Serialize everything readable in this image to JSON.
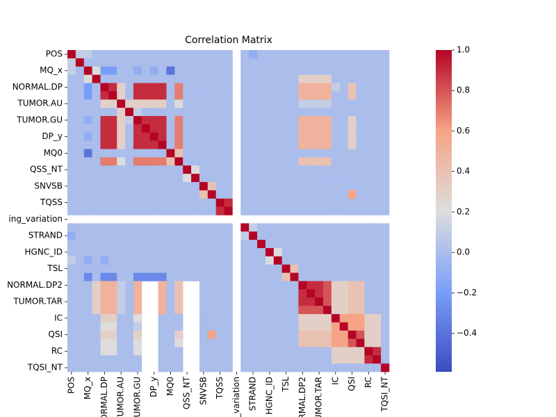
{
  "chart_data": {
    "type": "heatmap",
    "title": "Correlation Matrix",
    "categories": [
      "POS",
      null,
      "MQ_x",
      null,
      "NORMAL.DP",
      null,
      "TUMOR.AU",
      null,
      "TUMOR.GU",
      null,
      "DP_y",
      null,
      "MQ0",
      null,
      "QSS_NT",
      null,
      "SNVSB",
      null,
      "TQSS",
      null,
      "ing_variation",
      null,
      "STRAND",
      null,
      "HGNC_ID",
      null,
      "TSL",
      null,
      "NORMAL.DP2",
      null,
      "TUMOR.TAR",
      null,
      "IC",
      null,
      "QSI",
      null,
      "RC",
      null,
      "TQSI_NT"
    ],
    "colormap": "coolwarm",
    "zlim": [
      -0.59,
      1
    ],
    "zticks": [
      {
        "value": -0.4,
        "label": "−0.4"
      },
      {
        "value": -0.2,
        "label": "−0.2"
      },
      {
        "value": 0,
        "label": "0.0"
      },
      0.2,
      0.4,
      0.6,
      0.8,
      {
        "value": 1,
        "label": "1.0"
      }
    ],
    "matrix": [
      [
        1,
        0.1,
        0.1,
        0,
        0,
        0,
        0,
        0,
        0,
        0,
        0,
        0,
        0,
        0,
        0,
        0,
        0,
        0,
        0,
        0,
        null,
        0,
        -0.1,
        0,
        0,
        0,
        0,
        0,
        0,
        0,
        0,
        0,
        0,
        0,
        0,
        0,
        0,
        0,
        0
      ],
      [
        0.1,
        1,
        0,
        0,
        0,
        0,
        0,
        0,
        0,
        0,
        0,
        0,
        0,
        0,
        0,
        0,
        0,
        0,
        0,
        0,
        null,
        0,
        0,
        0,
        0,
        0,
        0,
        0,
        0,
        0,
        0,
        0,
        0,
        0,
        0,
        0,
        0,
        0,
        0
      ],
      [
        0.1,
        0,
        1,
        0.2,
        -0.2,
        -0.2,
        0,
        0,
        -0.1,
        0,
        -0.1,
        0,
        -0.4,
        0,
        0,
        0,
        0,
        0,
        0,
        0,
        null,
        0,
        0,
        0,
        0,
        0,
        0,
        0,
        0,
        0,
        0,
        0,
        0,
        0,
        0,
        0,
        0,
        0,
        0
      ],
      [
        0,
        0,
        0.2,
        1,
        0,
        0,
        0,
        0,
        0,
        0,
        0,
        0,
        0,
        0,
        0,
        0,
        0,
        0,
        0,
        0,
        null,
        0,
        0,
        0,
        0,
        0,
        0,
        0,
        0.3,
        0.3,
        0.3,
        0.3,
        0,
        0,
        0,
        0,
        0,
        0,
        0
      ],
      [
        0,
        0,
        -0.2,
        0,
        1,
        0.9,
        0.3,
        0,
        0.9,
        0.9,
        0.9,
        0.9,
        0,
        0.7,
        0,
        0,
        0,
        0,
        0,
        0,
        null,
        0,
        0,
        0,
        0,
        0,
        0,
        0,
        0.5,
        0.5,
        0.5,
        0.5,
        0.1,
        0,
        0.4,
        0,
        0,
        0,
        0
      ],
      [
        0,
        0,
        -0.2,
        0,
        0.9,
        1,
        0.3,
        0,
        0.9,
        0.9,
        0.9,
        0.9,
        0,
        0.7,
        0,
        0,
        0,
        0,
        0,
        0,
        null,
        0,
        0,
        0,
        0,
        0,
        0,
        0,
        0.5,
        0.5,
        0.5,
        0.5,
        0,
        0,
        0.4,
        0,
        0,
        0,
        0
      ],
      [
        0,
        0,
        0,
        0,
        0.3,
        0.3,
        1,
        0.3,
        0.3,
        0.3,
        0.3,
        0.3,
        0,
        0.2,
        0,
        0,
        0,
        0,
        0,
        0,
        null,
        0,
        0,
        0,
        0,
        0,
        0,
        0,
        0.1,
        0.1,
        0.1,
        0.1,
        0,
        0,
        0,
        0,
        0,
        0,
        0
      ],
      [
        0,
        0,
        0,
        0,
        0,
        0,
        0.3,
        1,
        0.1,
        0,
        0,
        0,
        0,
        0,
        0,
        0,
        0,
        0,
        0,
        0,
        null,
        0,
        0,
        0,
        0,
        0,
        0,
        0,
        0,
        0,
        0,
        0,
        0,
        0,
        0,
        0,
        0,
        0,
        0
      ],
      [
        0,
        0,
        -0.1,
        0,
        0.9,
        0.9,
        0.3,
        0.1,
        1,
        0.9,
        0.9,
        0.9,
        0,
        0.7,
        0,
        0,
        0,
        0,
        0,
        0,
        null,
        0,
        0,
        0,
        0,
        0,
        0,
        0,
        0.5,
        0.5,
        0.5,
        0.5,
        0,
        0,
        0.3,
        0,
        0,
        0,
        0
      ],
      [
        0,
        0,
        0,
        0,
        0.9,
        0.9,
        0.3,
        0,
        0.9,
        1,
        0.9,
        0.9,
        0,
        0.7,
        0,
        0,
        0,
        0,
        0,
        0,
        null,
        0,
        0,
        0,
        0,
        0,
        0,
        0,
        0.5,
        0.5,
        0.5,
        0.5,
        0,
        0,
        0.3,
        0,
        0,
        0,
        0
      ],
      [
        0,
        0,
        -0.1,
        0,
        0.9,
        0.9,
        0.3,
        0,
        0.9,
        0.9,
        1,
        0.9,
        0,
        0.7,
        0,
        0,
        0,
        0,
        0,
        0,
        null,
        0,
        0,
        0,
        0,
        0,
        0,
        0,
        0.5,
        0.5,
        0.5,
        0.5,
        0,
        0,
        0.3,
        0,
        0,
        0,
        0
      ],
      [
        0,
        0,
        0,
        0,
        0.9,
        0.9,
        0.3,
        0,
        0.9,
        0.9,
        0.9,
        1,
        0,
        0.7,
        0,
        0,
        0,
        0,
        0,
        0,
        null,
        0,
        0,
        0,
        0,
        0,
        0,
        0,
        0.5,
        0.5,
        0.5,
        0.5,
        0,
        0,
        0.3,
        0,
        0,
        0,
        0
      ],
      [
        0,
        0,
        -0.4,
        0,
        0,
        0,
        0,
        0,
        0,
        0,
        0,
        0,
        1,
        0.4,
        0,
        0,
        0,
        0,
        0,
        0,
        null,
        0,
        0,
        0,
        0,
        0,
        0,
        0,
        0,
        0,
        0,
        0,
        0,
        0,
        0,
        0,
        0,
        0,
        0
      ],
      [
        0,
        0,
        0,
        0,
        0.7,
        0.7,
        0.2,
        0,
        0.7,
        0.7,
        0.7,
        0.7,
        0.4,
        1,
        0,
        0,
        0,
        0,
        0,
        0,
        null,
        0,
        0,
        0,
        0,
        0,
        0,
        0,
        0.4,
        0.4,
        0.4,
        0.4,
        0,
        0,
        0,
        0,
        0,
        0,
        0
      ],
      [
        0,
        0,
        0,
        0,
        0,
        0,
        0,
        0,
        0,
        0,
        0,
        0,
        0,
        0,
        1,
        0.2,
        0,
        0,
        0,
        0,
        null,
        0,
        0,
        0,
        0,
        0,
        0,
        0,
        0,
        0,
        0,
        0,
        0,
        0,
        0,
        0,
        0,
        0,
        0
      ],
      [
        0,
        0,
        0,
        0,
        0,
        0,
        0,
        0,
        0,
        0,
        0,
        0,
        0,
        0,
        0.2,
        1,
        0,
        0,
        0,
        0,
        null,
        0,
        0,
        0,
        0,
        0,
        0,
        0,
        0,
        0,
        0,
        0,
        0,
        0,
        0,
        0,
        0,
        0,
        0
      ],
      [
        0,
        0,
        0,
        0,
        0,
        0,
        0,
        0,
        0,
        0,
        0,
        0,
        0,
        0,
        0,
        0,
        1,
        0.4,
        0,
        0,
        null,
        0,
        0,
        0,
        0,
        0,
        0,
        0,
        0,
        0,
        0,
        0,
        0,
        0,
        0,
        0,
        0,
        0,
        0
      ],
      [
        0,
        0,
        0,
        0,
        0,
        0,
        0,
        0,
        0,
        0,
        0,
        0,
        0,
        0,
        0,
        0,
        0.4,
        1,
        0,
        0,
        null,
        0,
        0,
        0,
        0,
        0,
        0,
        0,
        0,
        0,
        0,
        0,
        0,
        0,
        0.6,
        0,
        0,
        0,
        0
      ],
      [
        0,
        0,
        0,
        0,
        0,
        0,
        0,
        0,
        0,
        0,
        0,
        0,
        0,
        0,
        0,
        0,
        0,
        0,
        1,
        0.9,
        null,
        0,
        0,
        0,
        0,
        0,
        0,
        0,
        0,
        0,
        0,
        0,
        0,
        0,
        0,
        0,
        0,
        0,
        0
      ],
      [
        0,
        0,
        0,
        0,
        0,
        0,
        0,
        0,
        0,
        0,
        0,
        0,
        0,
        0,
        0,
        0,
        0,
        0,
        0.9,
        1,
        null,
        0,
        0,
        0,
        0,
        0,
        0,
        0,
        0,
        0,
        0,
        0,
        0,
        0,
        0,
        0,
        0,
        0,
        0
      ],
      [
        null,
        null,
        null,
        null,
        null,
        null,
        null,
        null,
        null,
        null,
        null,
        null,
        null,
        null,
        null,
        null,
        null,
        null,
        null,
        null,
        null,
        null,
        null,
        null,
        null,
        null,
        null,
        null,
        null,
        null,
        null,
        null,
        null,
        null,
        null,
        null,
        null,
        null,
        null
      ],
      [
        0,
        0,
        0,
        0,
        0,
        0,
        0,
        0,
        0,
        0,
        0,
        0,
        0,
        0,
        0,
        0,
        0,
        0,
        0,
        0,
        null,
        1,
        0.1,
        0,
        0,
        0,
        0,
        0,
        0,
        0,
        0,
        0,
        0,
        0,
        0,
        0,
        0,
        0,
        0
      ],
      [
        -0.1,
        0,
        0,
        0,
        0,
        0,
        0,
        0,
        0,
        0,
        0,
        0,
        0,
        0,
        0,
        0,
        0,
        0,
        0,
        0,
        null,
        0.1,
        1,
        0,
        0,
        0,
        0,
        0,
        0,
        0,
        0,
        0,
        0,
        0,
        0,
        0,
        0,
        0,
        0
      ],
      [
        0,
        0,
        0,
        0,
        0,
        0,
        0,
        0,
        0,
        0,
        0,
        0,
        0,
        0,
        0,
        0,
        0,
        0,
        0,
        0,
        null,
        0,
        0,
        1,
        0,
        0,
        0,
        0,
        0,
        0,
        0,
        0,
        0,
        0,
        0,
        0,
        0,
        0,
        0
      ],
      [
        0,
        0,
        0,
        0,
        0,
        0,
        0,
        0,
        0,
        0,
        0,
        0,
        0,
        0,
        0,
        0,
        0,
        0,
        0,
        0,
        null,
        0,
        0,
        0,
        1,
        0.2,
        0,
        0,
        0,
        0,
        0,
        0,
        0,
        0,
        0,
        0,
        0,
        0,
        0
      ],
      [
        0.1,
        0,
        -0.1,
        0,
        -0.1,
        0,
        0,
        0,
        0,
        0,
        0,
        0,
        0,
        0,
        0,
        0,
        0,
        0,
        0,
        0,
        null,
        0,
        0,
        0,
        0.2,
        1,
        0,
        0,
        0,
        0,
        0,
        0,
        0,
        0,
        0,
        0,
        0,
        0,
        0
      ],
      [
        0,
        0,
        0,
        0,
        0,
        0,
        0,
        0,
        0,
        0,
        0,
        0,
        0,
        0,
        0,
        0,
        0,
        0,
        0,
        0,
        null,
        0,
        0,
        0,
        0,
        0,
        1,
        0.4,
        0,
        0,
        0,
        0,
        0,
        0,
        0,
        0,
        0,
        0,
        0
      ],
      [
        0,
        0,
        -0.3,
        0,
        -0.3,
        -0.3,
        0,
        0,
        -0.3,
        -0.3,
        -0.3,
        -0.3,
        0,
        0,
        0,
        0,
        0,
        0,
        0,
        0,
        null,
        0,
        0,
        0,
        0,
        0,
        0.4,
        1,
        0,
        0,
        0,
        0,
        0,
        0,
        0,
        0,
        0,
        0,
        0
      ],
      [
        0,
        0,
        0,
        0.3,
        0.5,
        0.5,
        0.1,
        0,
        0.5,
        null,
        null,
        0.5,
        0,
        0.4,
        null,
        null,
        0,
        0,
        0,
        0,
        null,
        0,
        0,
        0,
        0,
        0,
        0,
        0,
        1,
        0.9,
        0.9,
        0.8,
        0.3,
        0.3,
        0.4,
        0.4,
        0,
        0,
        0
      ],
      [
        0,
        0,
        0,
        0.3,
        0.5,
        0.5,
        0.1,
        0,
        0.5,
        null,
        null,
        0.5,
        0,
        0.4,
        null,
        null,
        0,
        0,
        0,
        0,
        null,
        0,
        0,
        0,
        0,
        0,
        0,
        0,
        0.9,
        1,
        0.9,
        0.8,
        0.3,
        0.3,
        0.4,
        0.4,
        0,
        0,
        0
      ],
      [
        0,
        0,
        0,
        0.3,
        0.5,
        0.5,
        0.1,
        0,
        0.5,
        null,
        null,
        0.5,
        0,
        0.4,
        null,
        null,
        0,
        0,
        0,
        0,
        null,
        0,
        0,
        0,
        0,
        0,
        0,
        0,
        0.9,
        0.9,
        1,
        0.8,
        0.3,
        0.3,
        0.4,
        0.4,
        0,
        0,
        0
      ],
      [
        0,
        0,
        0,
        0.3,
        0.5,
        0.5,
        0.1,
        0,
        0.5,
        null,
        null,
        0.5,
        0,
        0.4,
        null,
        null,
        0,
        0,
        0,
        0,
        null,
        0,
        0,
        0,
        0,
        0,
        0,
        0,
        0.8,
        0.8,
        0.8,
        1,
        0.3,
        0.3,
        0.4,
        0.4,
        0,
        0,
        0
      ],
      [
        0,
        0,
        0,
        0,
        0.3,
        0.3,
        0,
        0,
        0.2,
        null,
        null,
        0,
        0,
        0,
        null,
        null,
        0,
        0,
        0,
        0,
        null,
        0,
        0,
        0,
        0,
        0,
        0,
        0,
        0.3,
        0.3,
        0.3,
        0.3,
        1,
        0.6,
        0.6,
        0.6,
        0.3,
        0.3,
        0
      ],
      [
        0,
        0,
        0,
        0,
        0.2,
        0.2,
        0,
        0,
        0.1,
        null,
        null,
        0,
        0,
        0,
        null,
        null,
        0,
        0,
        0,
        0,
        null,
        0,
        0,
        0,
        0,
        0,
        0,
        0,
        0.3,
        0.3,
        0.3,
        0.3,
        0.6,
        1,
        0.6,
        0.6,
        0.3,
        0.3,
        0
      ],
      [
        0,
        0,
        0,
        0,
        0.3,
        0.3,
        0,
        0,
        0.3,
        null,
        null,
        0,
        0,
        0.3,
        null,
        null,
        0,
        0.6,
        0,
        0,
        null,
        0,
        0,
        0,
        0,
        0,
        0,
        0,
        0.4,
        0.4,
        0.4,
        0.4,
        0.6,
        0.6,
        1,
        0.8,
        0.3,
        0.3,
        0
      ],
      [
        0,
        0,
        0,
        0,
        0.2,
        0.2,
        0,
        0,
        0.2,
        null,
        null,
        0,
        0,
        0.2,
        null,
        null,
        0,
        0,
        0,
        0,
        null,
        0,
        0,
        0,
        0,
        0,
        0,
        0,
        0.4,
        0.4,
        0.4,
        0.4,
        0.6,
        0.6,
        0.8,
        1,
        0.3,
        0.3,
        0
      ],
      [
        0,
        0,
        0,
        0,
        0.2,
        0.2,
        0,
        0,
        0.2,
        null,
        null,
        0,
        0,
        0,
        null,
        null,
        0,
        0,
        0,
        0,
        null,
        0,
        0,
        0,
        0,
        0,
        0,
        0,
        0,
        0,
        0,
        0,
        0.3,
        0.3,
        0.3,
        0.3,
        1,
        0.9,
        0
      ],
      [
        0,
        0,
        0,
        0,
        0,
        0,
        0,
        0,
        0,
        null,
        null,
        0,
        0,
        0,
        null,
        null,
        0,
        0,
        0,
        0,
        null,
        0,
        0,
        0,
        0,
        0,
        0,
        0,
        0,
        0,
        0,
        0,
        0.3,
        0.3,
        0.3,
        0.3,
        0.9,
        1,
        0
      ],
      [
        0,
        0,
        0,
        0,
        0,
        0,
        0,
        0,
        0,
        null,
        null,
        0,
        0,
        0,
        null,
        null,
        0,
        0,
        0,
        0,
        null,
        0,
        0,
        0,
        0,
        0,
        0,
        0,
        0,
        0,
        0,
        0,
        0,
        0,
        0,
        0,
        0,
        0,
        1
      ]
    ]
  }
}
